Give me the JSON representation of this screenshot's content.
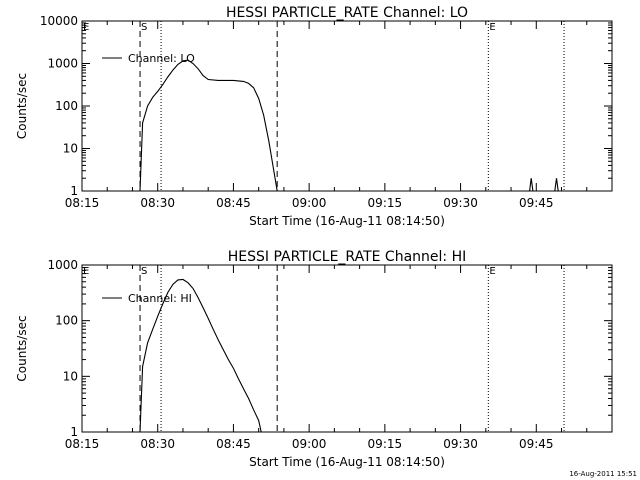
{
  "timestamp": "16-Aug-2011 15:51",
  "chart_data": [
    {
      "type": "line",
      "title": "HESSI PARTICLE_RATE Channel: LO",
      "xlabel": "Start Time (16-Aug-11 08:14:50)",
      "ylabel": "Counts/sec",
      "yscale": "log",
      "xlim": [
        "08:15",
        "10:00"
      ],
      "ylim": [
        1,
        10000
      ],
      "xticks": [
        "08:15",
        "08:30",
        "08:45",
        "09:00",
        "09:15",
        "09:30",
        "09:45"
      ],
      "yticks": [
        "1",
        "10",
        "100",
        "1000",
        "10000"
      ],
      "grid": false,
      "legend_position": "top-left",
      "series": [
        {
          "name": "Channel: LO",
          "x": [
            "08:26:30",
            "08:27",
            "08:28",
            "08:29",
            "08:30",
            "08:31",
            "08:32",
            "08:33",
            "08:34",
            "08:35",
            "08:36",
            "08:37",
            "08:38",
            "08:39",
            "08:40",
            "08:42",
            "08:45",
            "08:47",
            "08:48",
            "08:49",
            "08:50",
            "08:51",
            "08:52",
            "08:53",
            "08:53:40"
          ],
          "y": [
            1,
            40,
            100,
            160,
            220,
            320,
            480,
            700,
            950,
            1150,
            1200,
            1000,
            750,
            520,
            420,
            400,
            400,
            380,
            340,
            270,
            150,
            60,
            15,
            3,
            1
          ]
        },
        {
          "name": "",
          "x": [
            "09:43:40",
            "09:44",
            "09:44:20"
          ],
          "y": [
            1,
            2,
            1
          ]
        },
        {
          "name": "",
          "x": [
            "09:48:40",
            "09:49",
            "09:49:20"
          ],
          "y": [
            1,
            2,
            1
          ]
        }
      ],
      "annotations": [
        {
          "label": "E",
          "x": "08:15"
        },
        {
          "label": "S",
          "x": "08:26:30"
        },
        {
          "label": "E",
          "x": "09:35:30"
        }
      ],
      "vlines": [
        {
          "x": "08:26:30",
          "style": "dashed"
        },
        {
          "x": "08:30:40",
          "style": "dotted"
        },
        {
          "x": "08:53:40",
          "style": "dashed"
        },
        {
          "x": "09:35:30",
          "style": "dotted"
        },
        {
          "x": "09:50:30",
          "style": "dotted"
        }
      ]
    },
    {
      "type": "line",
      "title": "HESSI PARTICLE_RATE Channel: HI",
      "xlabel": "Start Time (16-Aug-11 08:14:50)",
      "ylabel": "Counts/sec",
      "yscale": "log",
      "xlim": [
        "08:15",
        "10:00"
      ],
      "ylim": [
        1,
        1000
      ],
      "xticks": [
        "08:15",
        "08:30",
        "08:45",
        "09:00",
        "09:15",
        "09:30",
        "09:45"
      ],
      "yticks": [
        "1",
        "10",
        "100",
        "1000"
      ],
      "grid": false,
      "legend_position": "top-left",
      "series": [
        {
          "name": "Channel: HI",
          "x": [
            "08:26:30",
            "08:27",
            "08:28",
            "08:29",
            "08:30",
            "08:31",
            "08:32",
            "08:33",
            "08:34",
            "08:35",
            "08:36",
            "08:37",
            "08:38",
            "08:39",
            "08:40",
            "08:41",
            "08:42",
            "08:43",
            "08:44",
            "08:45",
            "08:46",
            "08:47",
            "08:48",
            "08:49",
            "08:50",
            "08:50:30"
          ],
          "y": [
            1,
            15,
            40,
            70,
            120,
            200,
            320,
            450,
            540,
            550,
            480,
            380,
            260,
            170,
            110,
            70,
            45,
            30,
            20,
            14,
            9,
            6,
            4,
            2.5,
            1.6,
            1
          ]
        }
      ],
      "annotations": [
        {
          "label": "E",
          "x": "08:15"
        },
        {
          "label": "S",
          "x": "08:26:30"
        },
        {
          "label": "E",
          "x": "09:35:30"
        }
      ],
      "vlines": [
        {
          "x": "08:26:30",
          "style": "dashed"
        },
        {
          "x": "08:30:40",
          "style": "dotted"
        },
        {
          "x": "08:53:40",
          "style": "dashed"
        },
        {
          "x": "09:35:30",
          "style": "dotted"
        },
        {
          "x": "09:50:30",
          "style": "dotted"
        }
      ]
    }
  ]
}
